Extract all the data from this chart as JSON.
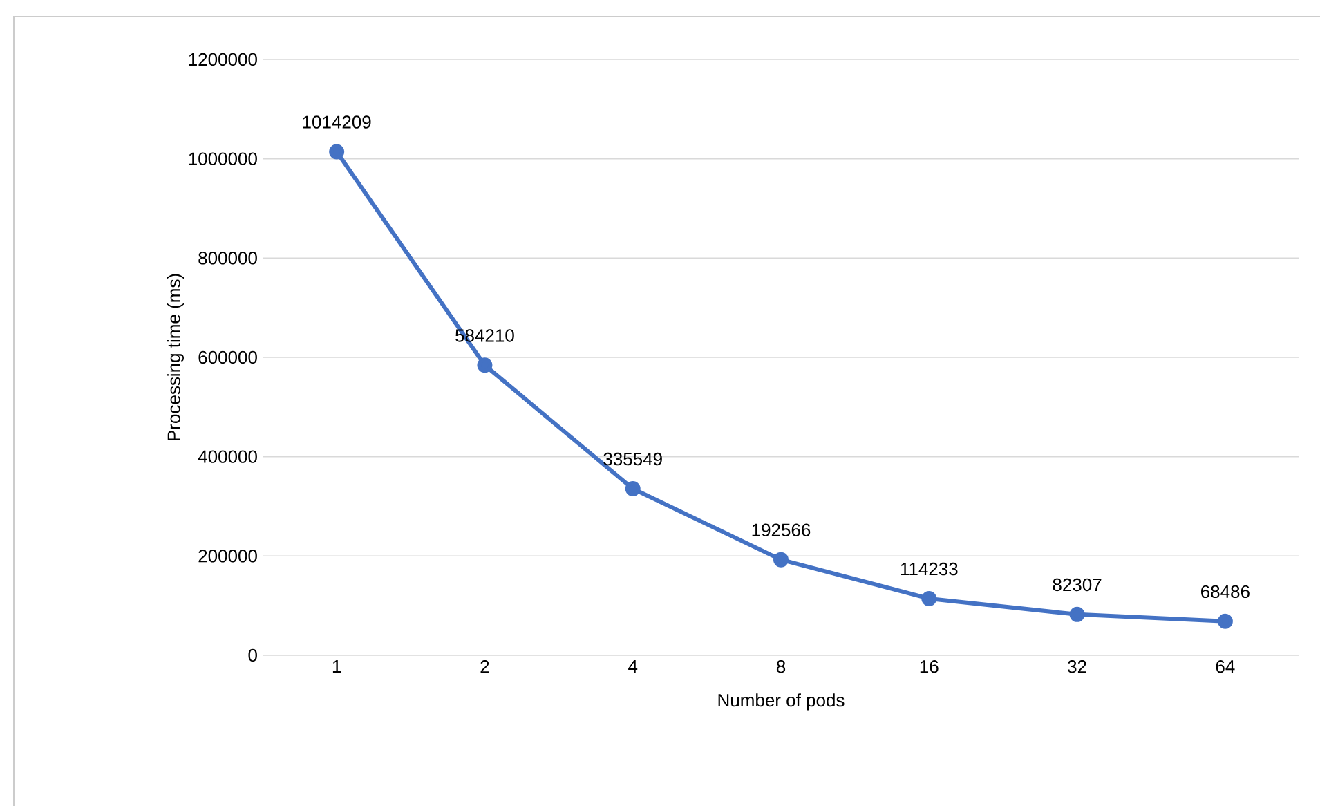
{
  "chart_data": {
    "type": "line",
    "xlabel": "Number of pods",
    "ylabel": "Processing time (ms)",
    "categories": [
      "1",
      "2",
      "4",
      "8",
      "16",
      "32",
      "64"
    ],
    "values": [
      1014209,
      584210,
      335549,
      192566,
      114233,
      82307,
      68486
    ],
    "color": "#4472c4",
    "marker": "circle",
    "line_style": "solid",
    "data_labels": true,
    "grid": "y",
    "ylim": [
      0,
      1200000
    ],
    "yticks": [
      0,
      200000,
      400000,
      600000,
      800000,
      1000000,
      1200000
    ]
  }
}
